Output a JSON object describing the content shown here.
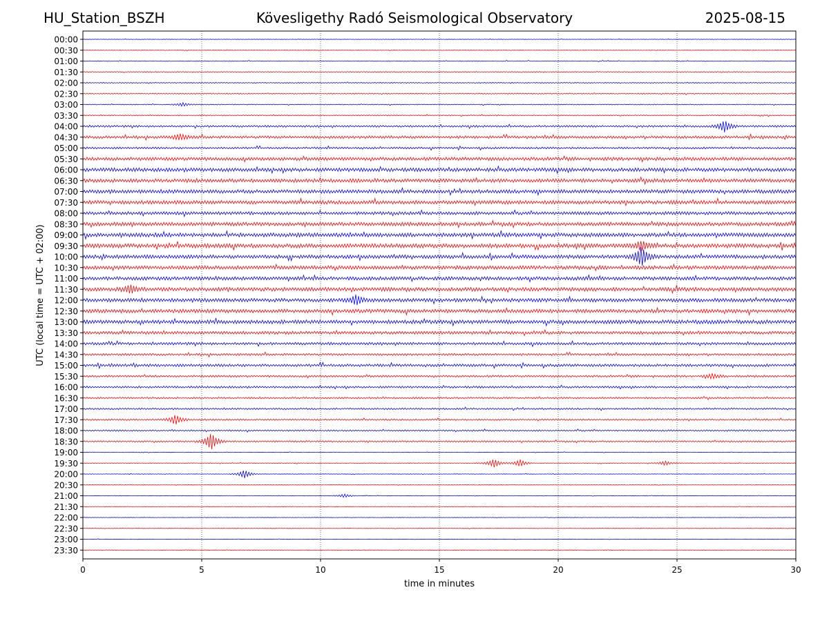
{
  "header": {
    "station": "HU_Station_BSZH",
    "observatory": "Kövesligethy Radó Seismological Observatory",
    "date": "2025-08-15"
  },
  "chart_data": {
    "type": "line",
    "title": "Kövesligethy Radó Seismological Observatory",
    "xlabel": "time in minutes",
    "ylabel": "UTC (local time = UTC + 02:00)",
    "xlim": [
      0,
      30
    ],
    "x_ticks": [
      "0",
      "5",
      "10",
      "15",
      "20",
      "25",
      "30"
    ],
    "grid_x": true,
    "colors": [
      "#0000ff",
      "#ff0000"
    ],
    "rows": [
      "00:00",
      "00:30",
      "01:00",
      "01:30",
      "02:00",
      "02:30",
      "03:00",
      "03:30",
      "04:00",
      "04:30",
      "05:00",
      "05:30",
      "06:00",
      "06:30",
      "07:00",
      "07:30",
      "08:00",
      "08:30",
      "09:00",
      "09:30",
      "10:00",
      "10:30",
      "11:00",
      "11:30",
      "12:00",
      "12:30",
      "13:00",
      "13:30",
      "14:00",
      "14:30",
      "15:00",
      "15:30",
      "16:00",
      "16:30",
      "17:00",
      "17:30",
      "18:00",
      "18:30",
      "19:00",
      "19:30",
      "20:00",
      "20:30",
      "21:00",
      "21:30",
      "22:00",
      "22:30",
      "23:00",
      "23:30"
    ],
    "noise_level": [
      0.3,
      0.3,
      0.4,
      0.5,
      0.5,
      0.6,
      0.5,
      0.6,
      1.2,
      1.6,
      1.2,
      2.0,
      2.2,
      2.2,
      2.2,
      2.2,
      1.9,
      2.2,
      2.4,
      2.5,
      2.2,
      2.2,
      2.1,
      2.3,
      2.2,
      2.2,
      2.3,
      1.8,
      1.6,
      1.3,
      1.6,
      1.2,
      1.2,
      1.0,
      1.0,
      0.9,
      0.9,
      0.9,
      0.3,
      0.4,
      0.3,
      0.3,
      0.3,
      0.25,
      0.25,
      0.25,
      0.25,
      0.25
    ],
    "events": [
      {
        "row": "03:00",
        "minute": 4.2,
        "amplitude": 2.5
      },
      {
        "row": "04:00",
        "minute": 27.0,
        "amplitude": 8
      },
      {
        "row": "04:30",
        "minute": 4.1,
        "amplitude": 4
      },
      {
        "row": "09:30",
        "minute": 23.5,
        "amplitude": 6
      },
      {
        "row": "10:00",
        "minute": 23.5,
        "amplitude": 14
      },
      {
        "row": "11:30",
        "minute": 2.0,
        "amplitude": 5
      },
      {
        "row": "12:00",
        "minute": 11.5,
        "amplitude": 6
      },
      {
        "row": "15:30",
        "minute": 26.5,
        "amplitude": 3.5
      },
      {
        "row": "17:30",
        "minute": 3.9,
        "amplitude": 7
      },
      {
        "row": "18:30",
        "minute": 5.4,
        "amplitude": 12
      },
      {
        "row": "19:30",
        "minute": 17.3,
        "amplitude": 6
      },
      {
        "row": "19:30",
        "minute": 18.4,
        "amplitude": 5
      },
      {
        "row": "19:30",
        "minute": 24.5,
        "amplitude": 3
      },
      {
        "row": "20:00",
        "minute": 6.8,
        "amplitude": 6
      },
      {
        "row": "21:00",
        "minute": 11.0,
        "amplitude": 2.5
      }
    ]
  }
}
